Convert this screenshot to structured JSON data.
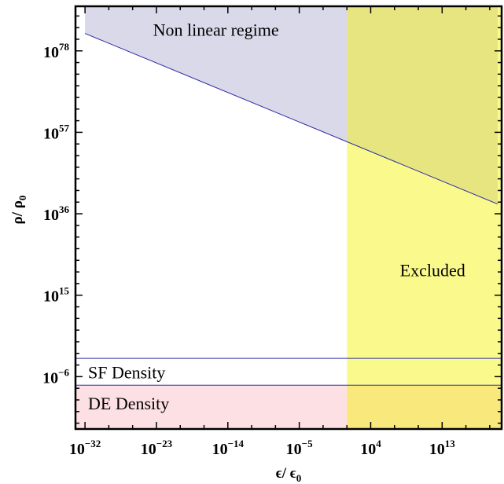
{
  "chart_data": {
    "type": "area",
    "title": "",
    "xlabel": {
      "base": "ϵ/ ϵ",
      "sub": "0"
    },
    "ylabel": {
      "base": "ρ/ ρ",
      "sub": "0"
    },
    "x_scale": "log10",
    "y_scale": "log10",
    "xlim_log10": [
      -33.2,
      20.5
    ],
    "ylim_log10": [
      -19.5,
      89.5
    ],
    "x_ticks": [
      {
        "label_base": "10",
        "label_exp": "−32",
        "log10": -32
      },
      {
        "label_base": "10",
        "label_exp": "−23",
        "log10": -23
      },
      {
        "label_base": "10",
        "label_exp": "−14",
        "log10": -14
      },
      {
        "label_base": "10",
        "label_exp": "−5",
        "log10": -5
      },
      {
        "label_base": "10",
        "label_exp": "4",
        "log10": 4
      },
      {
        "label_base": "10",
        "label_exp": "13",
        "log10": 13
      }
    ],
    "y_ticks": [
      {
        "label_base": "10",
        "label_exp": "78",
        "log10": 78
      },
      {
        "label_base": "10",
        "label_exp": "57",
        "log10": 57
      },
      {
        "label_base": "10",
        "label_exp": "36",
        "log10": 36
      },
      {
        "label_base": "10",
        "label_exp": "15",
        "log10": 15
      },
      {
        "label_base": "10",
        "label_exp": "−6",
        "log10": -6
      }
    ],
    "series": [
      {
        "name": "Non linear regime",
        "kind": "line",
        "x_log10": [
          -32,
          20
        ],
        "y_log10": [
          82.5,
          38.5
        ],
        "color": "#2a2aa8",
        "fill_above": "#dad9ea"
      },
      {
        "name": "SF Density",
        "kind": "band",
        "y_lower_log10": -8.2,
        "y_upper_log10": -1.3,
        "color": "#2a2aa8",
        "fill": "#ffffff"
      },
      {
        "name": "DE Density",
        "kind": "band",
        "y_upper_log10": -8.2,
        "fill": "#fde0e3"
      },
      {
        "name": "Excluded",
        "kind": "vertical_region",
        "x_lower_log10": 1.0,
        "fill": "#fbfb88",
        "overlay_opacity": 0.45
      }
    ],
    "annotations": [
      {
        "text": "Non linear regime",
        "near_x_log10": -15.5,
        "near_y_log10": 83.5
      },
      {
        "text": "Excluded",
        "near_x_log10": 11.8,
        "near_y_log10": 21.5
      },
      {
        "text": "SF Density",
        "near_x_log10": -26.5,
        "near_y_log10": -4.8
      },
      {
        "text": "DE Density",
        "near_x_log10": -26.5,
        "near_y_log10": -12.8
      }
    ],
    "colors": {
      "nonlinear_fill": "#dad9ea",
      "excluded_fill": "#fbfb88",
      "de_fill": "#fde0e3",
      "line_color": "#2a2aa8",
      "frame_color": "#000000"
    },
    "grid": false,
    "legend": "none"
  }
}
